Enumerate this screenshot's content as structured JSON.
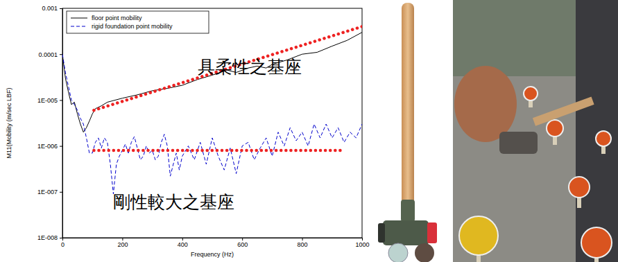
{
  "chart_data": {
    "type": "line",
    "x_label": "Frequency (Hz)",
    "y_label": "M11(Mobility (m/sec LBF)",
    "annotations": [
      "具柔性之基座",
      "剛性較大之基座"
    ],
    "log": "y",
    "grid": false,
    "legend": "upper left",
    "xlim": [
      0,
      1000
    ],
    "ylim": [
      1e-08,
      0.001
    ],
    "xticks": [
      0,
      200,
      400,
      600,
      800,
      1000
    ],
    "yticks": [
      {
        "value": 1e-08,
        "label": "1E-008"
      },
      {
        "value": 1e-07,
        "label": "1E-007"
      },
      {
        "value": 1e-06,
        "label": "1E-006"
      },
      {
        "value": 1e-05,
        "label": "1E-005"
      },
      0.0001,
      0.001
    ],
    "series": [
      {
        "name": "floor point mobility",
        "color": "#000000",
        "line_style": "solid",
        "x": [
          0,
          10,
          20,
          30,
          40,
          50,
          60,
          70,
          80,
          90,
          100,
          110,
          130,
          150,
          200,
          250,
          300,
          350,
          400,
          450,
          500,
          550,
          580,
          620,
          650,
          680,
          700,
          750,
          800,
          850,
          900,
          950,
          1000
        ],
        "values": [
          0.0001,
          3e-05,
          1.5e-05,
          8e-06,
          9e-06,
          5e-06,
          3e-06,
          2e-06,
          2.5e-06,
          3.5e-06,
          5e-06,
          6.5e-06,
          7.5e-06,
          9e-06,
          1.1e-05,
          1.3e-05,
          1.6e-05,
          1.8e-05,
          2.1e-05,
          2.8e-05,
          3.5e-05,
          4.5e-05,
          4e-05,
          5e-05,
          5.5e-05,
          5e-05,
          6e-05,
          7.5e-05,
          0.0001,
          0.00011,
          0.00015,
          0.0002,
          0.0003
        ]
      },
      {
        "name": "rigid foundation point mobility",
        "color": "#0000cc",
        "line_style": "dashed",
        "x": [
          0,
          10,
          20,
          30,
          40,
          50,
          60,
          70,
          80,
          90,
          100,
          110,
          120,
          130,
          140,
          150,
          160,
          170,
          180,
          190,
          200,
          210,
          220,
          230,
          240,
          250,
          260,
          270,
          280,
          290,
          300,
          310,
          320,
          330,
          340,
          350,
          360,
          370,
          380,
          390,
          400,
          420,
          440,
          460,
          480,
          500,
          520,
          540,
          560,
          580,
          600,
          620,
          640,
          660,
          680,
          700,
          720,
          740,
          760,
          780,
          800,
          820,
          840,
          860,
          880,
          900,
          920,
          940,
          960,
          980,
          1000
        ],
        "values": [
          0.0001,
          4e-05,
          2e-05,
          1e-05,
          8e-06,
          6e-06,
          4e-06,
          3e-06,
          1.5e-06,
          7e-07,
          7e-07,
          1.2e-06,
          1.5e-06,
          9e-07,
          1.5e-06,
          1.2e-06,
          4e-07,
          9e-08,
          4e-07,
          6e-07,
          8e-07,
          1.1e-06,
          7e-07,
          1.2e-06,
          1.6e-06,
          9e-07,
          5e-07,
          6e-07,
          1e-06,
          7e-07,
          8e-07,
          5e-07,
          6e-07,
          1.2e-06,
          1.8e-06,
          1e-06,
          2.2e-07,
          4e-07,
          7e-07,
          3e-07,
          6e-07,
          1e-06,
          5e-07,
          1.2e-06,
          4e-07,
          1.5e-06,
          6e-07,
          3e-07,
          9e-07,
          2.5e-07,
          1e-06,
          1.2e-06,
          5e-07,
          9e-07,
          1.5e-06,
          6e-07,
          2e-06,
          1e-06,
          2.5e-06,
          1.3e-06,
          2e-06,
          1e-06,
          3e-06,
          1.5e-06,
          3e-06,
          1.5e-06,
          2.5e-06,
          1.2e-06,
          2e-06,
          1.5e-06,
          3e-06
        ]
      },
      {
        "color": "#ee2222",
        "line_style": "dotted",
        "x": [
          105,
          1000
        ],
        "values": [
          6e-06,
          0.0004
        ]
      },
      {
        "color": "#ee2222",
        "line_style": "dotted",
        "x": [
          105,
          940
        ],
        "values": [
          8e-07,
          8e-07
        ]
      }
    ]
  }
}
